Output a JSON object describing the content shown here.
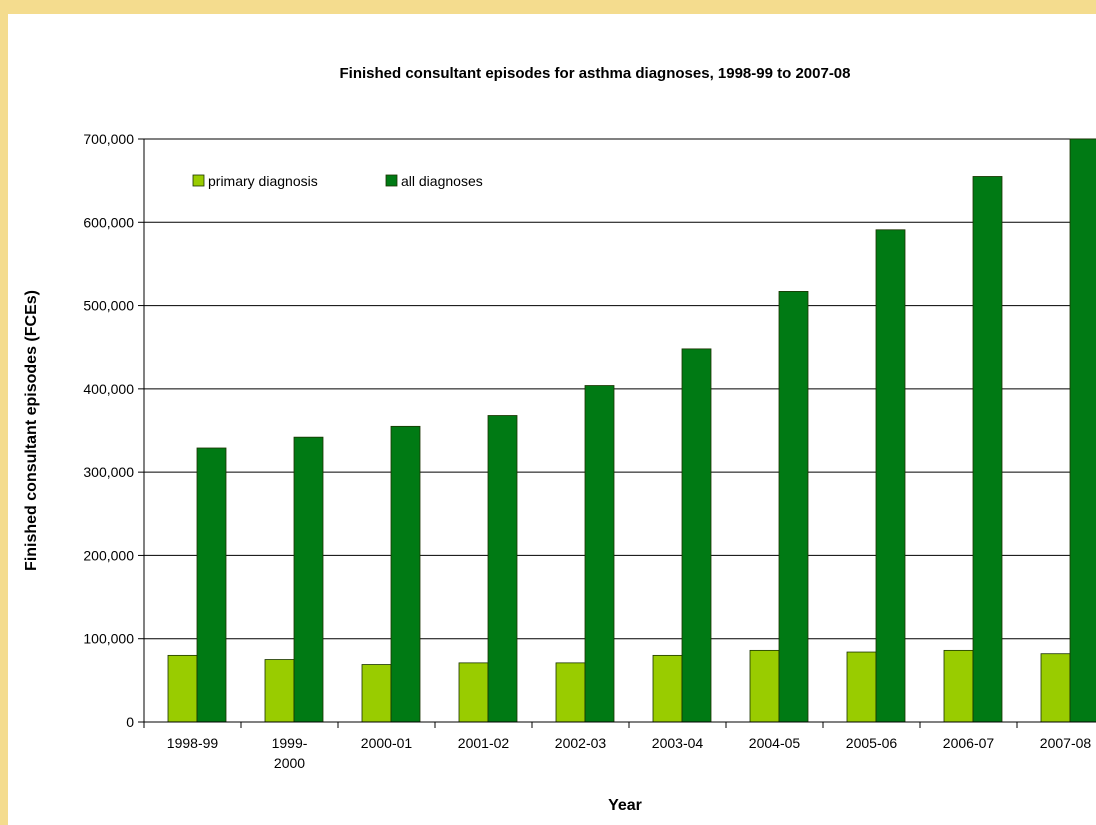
{
  "colors": {
    "background": "#f4dc8e",
    "primary_diagnosis": "#99cc00",
    "all_diagnoses": "#007a14",
    "bar_outline": "#1a3300",
    "grid": "#000000"
  },
  "chart_data": {
    "type": "bar",
    "title": "Finished consultant episodes for asthma diagnoses, 1998-99 to 2007-08",
    "xlabel": "Year",
    "ylabel": "Finished consultant episodes (FCEs)",
    "ylim": [
      0,
      700000
    ],
    "yticks": [
      0,
      100000,
      200000,
      300000,
      400000,
      500000,
      600000,
      700000
    ],
    "ytick_labels": [
      "0",
      "100,000",
      "200,000",
      "300,000",
      "400,000",
      "500,000",
      "600,000",
      "700,000"
    ],
    "grid": true,
    "legend_position": "top-left",
    "categories": [
      [
        "1998-99"
      ],
      [
        "1999-",
        "2000"
      ],
      [
        "2000-01"
      ],
      [
        "2001-02"
      ],
      [
        "2002-03"
      ],
      [
        "2003-04"
      ],
      [
        "2004-05"
      ],
      [
        "2005-06"
      ],
      [
        "2006-07"
      ],
      [
        "2007-08"
      ]
    ],
    "series": [
      {
        "name": "primary diagnosis",
        "values": [
          80000,
          75000,
          69000,
          71000,
          71000,
          80000,
          86000,
          84000,
          86000,
          82000
        ]
      },
      {
        "name": "all diagnoses",
        "values": [
          329000,
          342000,
          355000,
          368000,
          404000,
          448000,
          517000,
          591000,
          655000,
          700000
        ]
      }
    ]
  }
}
